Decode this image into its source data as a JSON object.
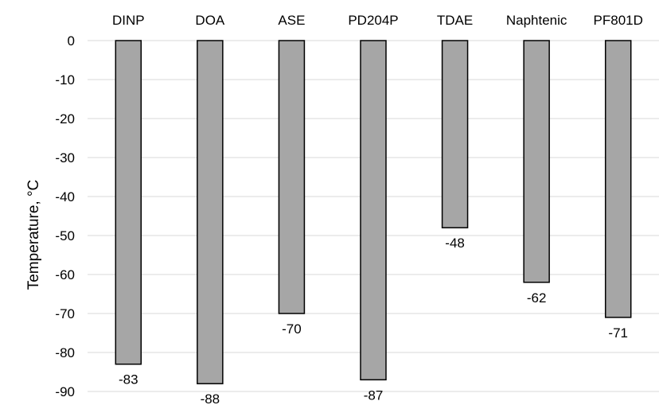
{
  "chart_data": {
    "type": "bar",
    "title": "",
    "xlabel": "",
    "ylabel": "Temperature, °C",
    "categories": [
      "DINP",
      "DOA",
      "ASE",
      "PD204P",
      "TDAE",
      "Naphtenic",
      "PF801D"
    ],
    "values": [
      -83,
      -88,
      -70,
      -87,
      -48,
      -62,
      -71
    ],
    "data_labels": [
      "-83",
      "-88",
      "-70",
      "-87",
      "-48",
      "-62",
      "-71"
    ],
    "ylim": [
      -90,
      0
    ],
    "yticks": [
      0,
      -10,
      -20,
      -30,
      -40,
      -50,
      -60,
      -70,
      -80,
      -90
    ],
    "ytick_labels": [
      "0",
      "-10",
      "-20",
      "-30",
      "-40",
      "-50",
      "-60",
      "-70",
      "-80",
      "-90"
    ],
    "category_axis_position": "top",
    "grid": true,
    "legend": "none",
    "colors": {
      "bar_fill": "#a6a6a6",
      "bar_stroke": "#000000",
      "grid": "#d9d9d9",
      "text": "#000000"
    }
  }
}
